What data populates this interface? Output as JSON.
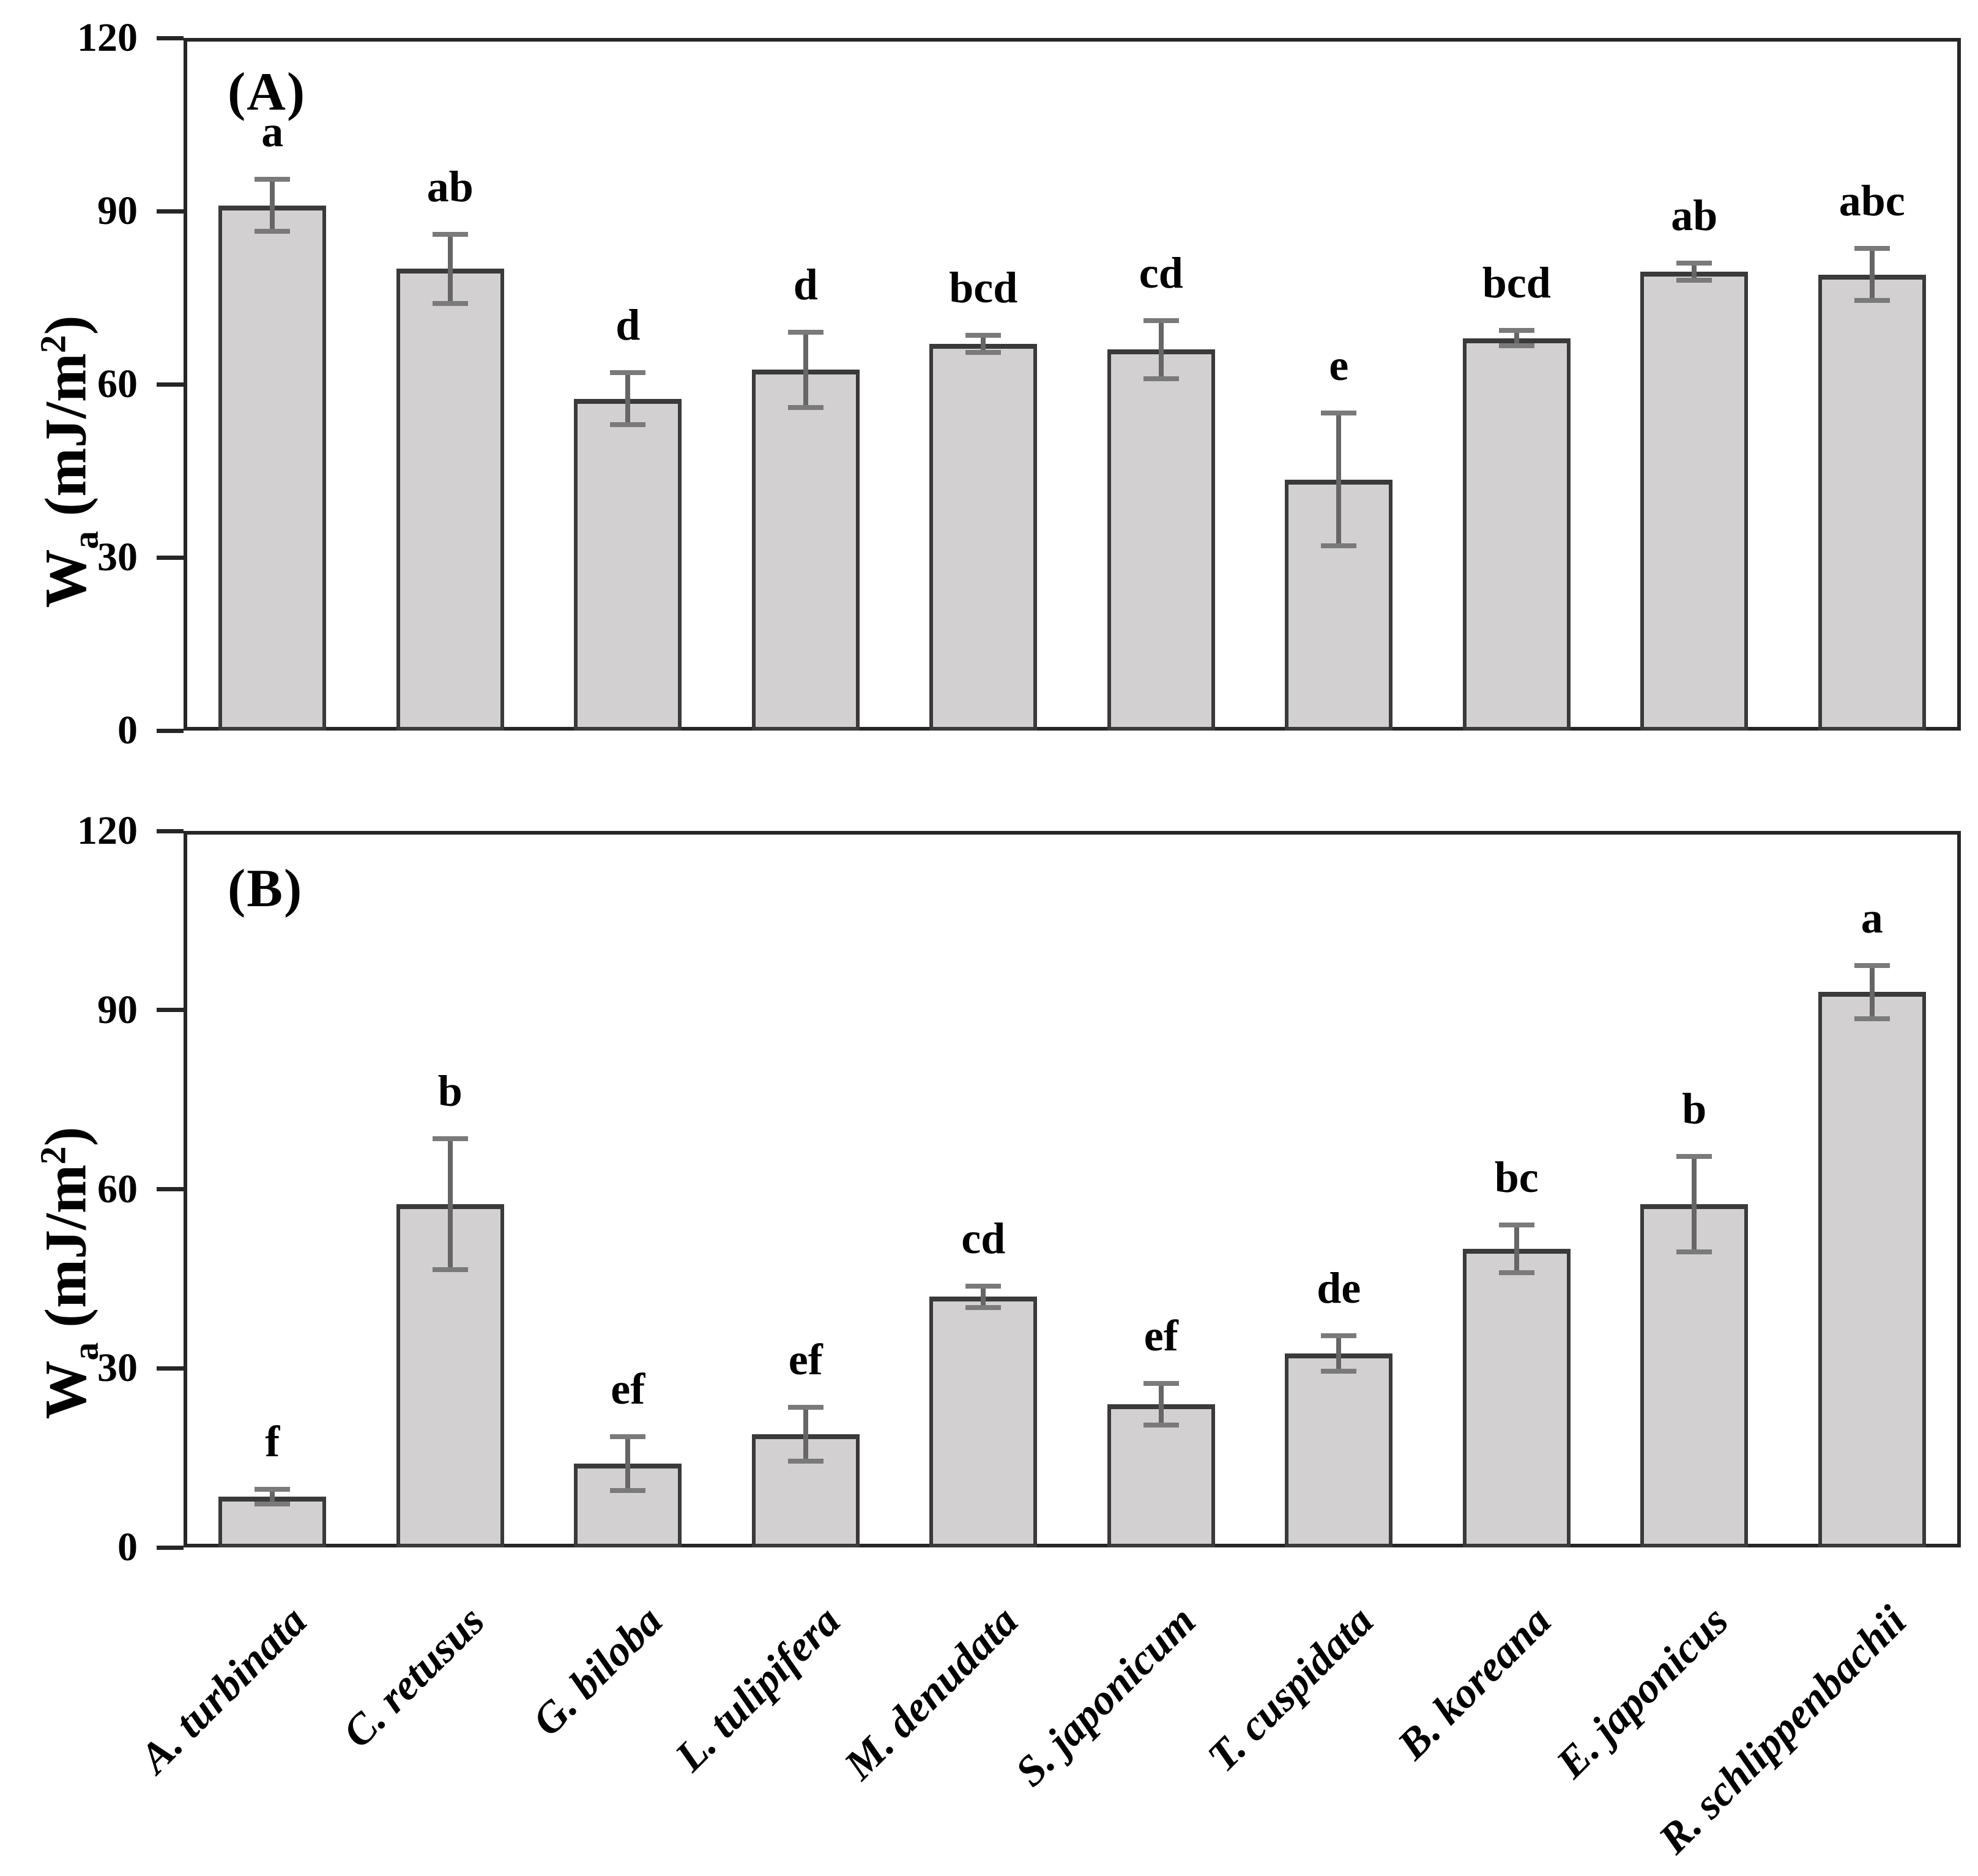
{
  "figure": {
    "background": "#ffffff",
    "bar_fill": "#d2d0d0",
    "bar_border": "#3a3a3a",
    "error_color": "#666666",
    "axis_color": "#262626",
    "text_color": "#000000"
  },
  "categories": [
    "A. turbinata",
    "C. retusus",
    "G. biloba",
    "L. tulipifera",
    "M. denudata",
    "S. japonicum",
    "T. cuspidata",
    "B. koreana",
    "E. japonicus",
    "R. schlippenbachii"
  ],
  "chart_data": [
    {
      "type": "bar",
      "panel_label": "(A)",
      "ylabel": {
        "base": "W",
        "sub": "a",
        "rest": " (mJ/m",
        "sup": "2",
        "close": ")",
        "plain": "Wa (mJ/m2)"
      },
      "ylim": [
        0,
        120
      ],
      "yticks": [
        0,
        30,
        60,
        90,
        120
      ],
      "grid": false,
      "legend": "none",
      "categories": [
        "A. turbinata",
        "C. retusus",
        "G. biloba",
        "L. tulipifera",
        "M. denudata",
        "S. japonicum",
        "T. cuspidata",
        "B. koreana",
        "E. japonicus",
        "R. schlippenbachii"
      ],
      "values": [
        91,
        80,
        57.5,
        62.5,
        67,
        66,
        43.5,
        68,
        79.5,
        79
      ],
      "errors": [
        4.5,
        6,
        4.5,
        6.5,
        1.5,
        5,
        11.5,
        1.3,
        1.5,
        4.5
      ],
      "sig_letters": [
        "a",
        "ab",
        "d",
        "d",
        "bcd",
        "cd",
        "e",
        "bcd",
        "ab",
        "abc"
      ]
    },
    {
      "type": "bar",
      "panel_label": "(B)",
      "ylabel": {
        "base": "W",
        "sub": "a",
        "rest": " (mJ/m",
        "sup": "2",
        "close": ")",
        "plain": "Wa (mJ/m2)"
      },
      "ylim": [
        0,
        120
      ],
      "yticks": [
        0,
        30,
        60,
        90,
        120
      ],
      "grid": false,
      "legend": "none",
      "categories": [
        "A. turbinata",
        "C. retusus",
        "G. biloba",
        "L. tulipifera",
        "M. denudata",
        "S. japonicum",
        "T. cuspidata",
        "B. koreana",
        "E. japonicus",
        "R. schlippenbachii"
      ],
      "values": [
        8.5,
        57.5,
        14,
        19,
        42,
        24,
        32.5,
        50,
        57.5,
        93
      ],
      "errors": [
        1.2,
        11,
        4.5,
        4.5,
        1.8,
        3.5,
        3,
        4,
        8,
        4.5
      ],
      "sig_letters": [
        "f",
        "b",
        "ef",
        "ef",
        "cd",
        "ef",
        "de",
        "bc",
        "b",
        "a"
      ]
    }
  ]
}
